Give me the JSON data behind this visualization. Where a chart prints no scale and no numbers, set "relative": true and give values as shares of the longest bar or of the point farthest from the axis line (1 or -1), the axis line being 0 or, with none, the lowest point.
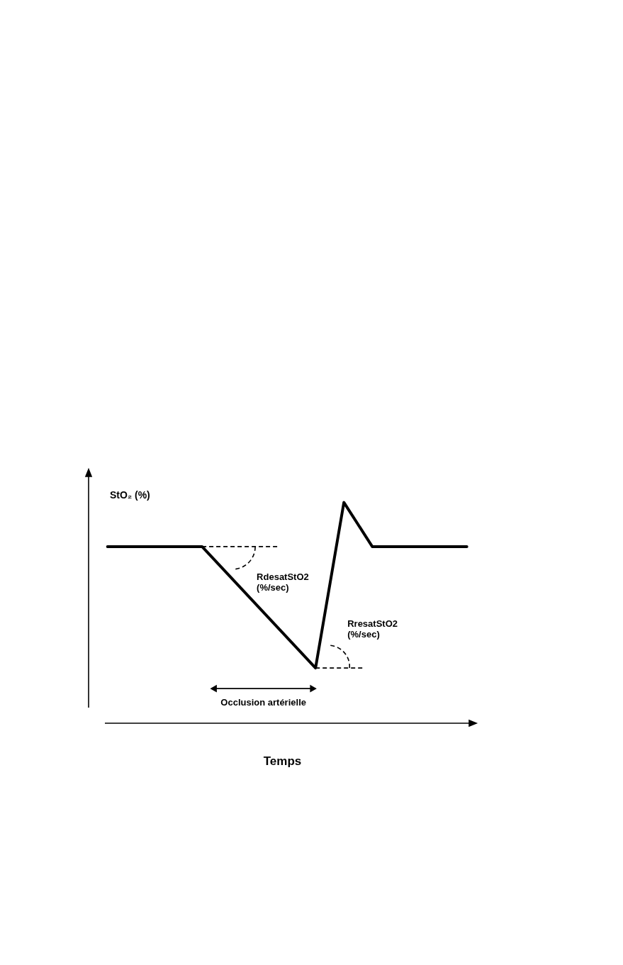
{
  "chart_data": {
    "type": "line",
    "relative": true,
    "xlabel": "Temps",
    "ylabel": "StO₂ (%)",
    "categories": [
      null,
      null,
      null,
      null,
      null,
      null,
      null,
      null,
      null,
      null,
      null,
      null,
      null,
      null,
      null,
      null,
      null,
      null,
      null,
      null,
      null,
      null,
      null,
      null,
      null,
      null,
      null,
      null,
      null,
      null,
      null,
      null,
      null,
      null,
      null,
      null,
      null,
      null,
      null,
      null,
      null,
      null
    ],
    "series": [
      {
        "color": "#000000",
        "values": [
          null,
          null,
          0.8,
          null,
          null,
          null,
          null,
          null,
          null,
          null,
          null,
          null,
          0.8,
          null,
          null,
          null,
          null,
          null,
          null,
          null,
          null,
          null,
          null,
          null,
          0.25,
          null,
          null,
          1,
          null,
          null,
          0.8,
          null,
          null,
          null,
          null,
          null,
          null,
          null,
          null,
          null,
          0.8,
          null
        ]
      }
    ],
    "annotations": [
      "RdesatStO2 (%/sec)",
      "RresatStO2 (%/sec)",
      "Occlusion artérielle"
    ],
    "marker": "none",
    "grid": false
  }
}
